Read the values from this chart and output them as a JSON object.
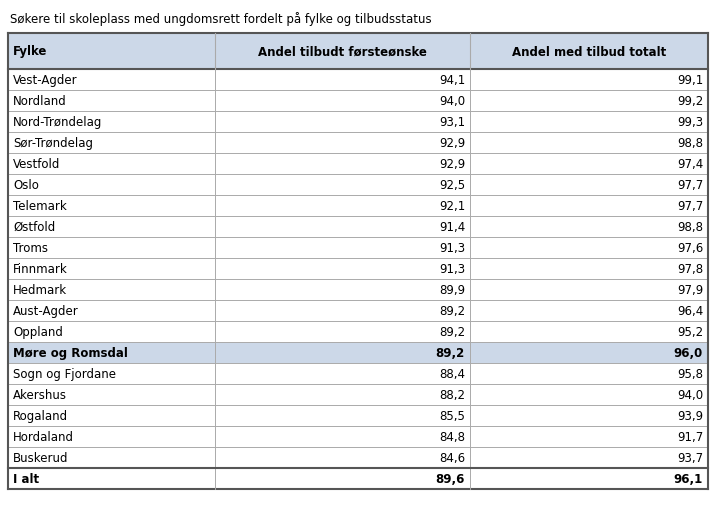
{
  "title": "Søkere til skoleplass med ungdomsrett fordelt på fylke og tilbudsstatus",
  "col_headers": [
    "Fylke",
    "Andel tilbudt førsteønske",
    "Andel med tilbud totalt"
  ],
  "rows": [
    {
      "fylke": "Vest-Agder",
      "col1": "94,1",
      "col2": "99,1",
      "bold": false,
      "highlight": false
    },
    {
      "fylke": "Nordland",
      "col1": "94,0",
      "col2": "99,2",
      "bold": false,
      "highlight": false
    },
    {
      "fylke": "Nord-Trøndelag",
      "col1": "93,1",
      "col2": "99,3",
      "bold": false,
      "highlight": false
    },
    {
      "fylke": "Sør-Trøndelag",
      "col1": "92,9",
      "col2": "98,8",
      "bold": false,
      "highlight": false
    },
    {
      "fylke": "Vestfold",
      "col1": "92,9",
      "col2": "97,4",
      "bold": false,
      "highlight": false
    },
    {
      "fylke": "Oslo",
      "col1": "92,5",
      "col2": "97,7",
      "bold": false,
      "highlight": false
    },
    {
      "fylke": "Telemark",
      "col1": "92,1",
      "col2": "97,7",
      "bold": false,
      "highlight": false
    },
    {
      "fylke": "Østfold",
      "col1": "91,4",
      "col2": "98,8",
      "bold": false,
      "highlight": false
    },
    {
      "fylke": "Troms",
      "col1": "91,3",
      "col2": "97,6",
      "bold": false,
      "highlight": false
    },
    {
      "fylke": "Finnmark",
      "col1": "91,3",
      "col2": "97,8",
      "bold": false,
      "highlight": false
    },
    {
      "fylke": "Hedmark",
      "col1": "89,9",
      "col2": "97,9",
      "bold": false,
      "highlight": false
    },
    {
      "fylke": "Aust-Agder",
      "col1": "89,2",
      "col2": "96,4",
      "bold": false,
      "highlight": false
    },
    {
      "fylke": "Oppland",
      "col1": "89,2",
      "col2": "95,2",
      "bold": false,
      "highlight": false
    },
    {
      "fylke": "Møre og Romsdal",
      "col1": "89,2",
      "col2": "96,0",
      "bold": true,
      "highlight": true
    },
    {
      "fylke": "Sogn og Fjordane",
      "col1": "88,4",
      "col2": "95,8",
      "bold": false,
      "highlight": false
    },
    {
      "fylke": "Akershus",
      "col1": "88,2",
      "col2": "94,0",
      "bold": false,
      "highlight": false
    },
    {
      "fylke": "Rogaland",
      "col1": "85,5",
      "col2": "93,9",
      "bold": false,
      "highlight": false
    },
    {
      "fylke": "Hordaland",
      "col1": "84,8",
      "col2": "91,7",
      "bold": false,
      "highlight": false
    },
    {
      "fylke": "Buskerud",
      "col1": "84,6",
      "col2": "93,7",
      "bold": false,
      "highlight": false
    },
    {
      "fylke": "I alt",
      "col1": "89,6",
      "col2": "96,1",
      "bold": true,
      "highlight": false
    }
  ],
  "header_bg": "#ccd8e8",
  "highlight_bg": "#ccd8e8",
  "border_color": "#aaaaaa",
  "outer_border_color": "#555555",
  "title_fontsize": 8.5,
  "header_fontsize": 8.5,
  "cell_fontsize": 8.5,
  "figwidth": 7.16,
  "figheight": 5.1,
  "dpi": 100
}
